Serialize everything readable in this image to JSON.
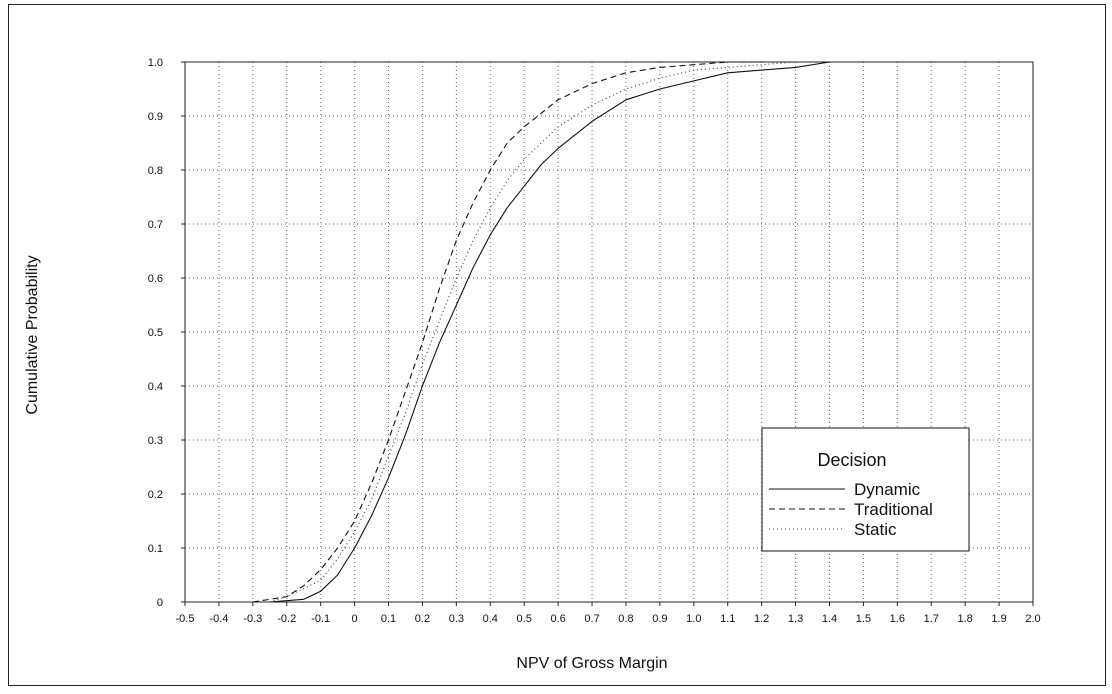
{
  "chart_data": {
    "type": "line",
    "title": "",
    "xlabel": "NPV of Gross Margin",
    "ylabel": "Cumulative Probability",
    "xlim": [
      -0.5,
      2.0
    ],
    "ylim": [
      0,
      1.0
    ],
    "grid": true,
    "legend": {
      "title": "Decision",
      "position": "bottom-right"
    },
    "x_ticks": [
      "-0.5",
      "-0.4",
      "-0.3",
      "-0.2",
      "-0.1",
      "0",
      "0.1",
      "0.2",
      "0.3",
      "0.4",
      "0.5",
      "0.6",
      "0.7",
      "0.8",
      "0.9",
      "1.0",
      "1.1",
      "1.2",
      "1.3",
      "1.4",
      "1.5",
      "1.6",
      "1.7",
      "1.8",
      "1.9",
      "2.0"
    ],
    "y_ticks": [
      "0",
      "0.1",
      "0.2",
      "0.3",
      "0.4",
      "0.5",
      "0.6",
      "0.7",
      "0.8",
      "0.9",
      "1.0"
    ],
    "series": [
      {
        "name": "Dynamic",
        "line_style": "solid",
        "x": [
          -0.25,
          -0.15,
          -0.1,
          -0.05,
          0,
          0.05,
          0.1,
          0.15,
          0.2,
          0.25,
          0.3,
          0.35,
          0.4,
          0.45,
          0.5,
          0.55,
          0.6,
          0.7,
          0.8,
          0.9,
          1.0,
          1.1,
          1.2,
          1.3,
          1.4
        ],
        "y": [
          0,
          0.005,
          0.02,
          0.05,
          0.1,
          0.16,
          0.23,
          0.31,
          0.4,
          0.48,
          0.55,
          0.62,
          0.68,
          0.73,
          0.77,
          0.81,
          0.84,
          0.89,
          0.93,
          0.95,
          0.965,
          0.98,
          0.985,
          0.99,
          1.0
        ]
      },
      {
        "name": "Traditional",
        "line_style": "dashed",
        "x": [
          -0.3,
          -0.2,
          -0.15,
          -0.1,
          -0.05,
          0,
          0.05,
          0.1,
          0.15,
          0.2,
          0.25,
          0.3,
          0.35,
          0.4,
          0.45,
          0.5,
          0.6,
          0.7,
          0.8,
          0.9,
          1.0,
          1.1,
          1.2
        ],
        "y": [
          0,
          0.01,
          0.03,
          0.06,
          0.1,
          0.15,
          0.22,
          0.3,
          0.39,
          0.48,
          0.58,
          0.67,
          0.74,
          0.8,
          0.85,
          0.88,
          0.93,
          0.96,
          0.98,
          0.99,
          0.995,
          1.0,
          1.0
        ]
      },
      {
        "name": "Static",
        "line_style": "dotted",
        "x": [
          -0.25,
          -0.2,
          -0.1,
          -0.05,
          0,
          0.05,
          0.1,
          0.15,
          0.2,
          0.25,
          0.3,
          0.35,
          0.4,
          0.45,
          0.5,
          0.6,
          0.7,
          0.8,
          0.9,
          1.0,
          1.1,
          1.2,
          1.3
        ],
        "y": [
          0,
          0.01,
          0.04,
          0.08,
          0.13,
          0.19,
          0.27,
          0.35,
          0.44,
          0.52,
          0.6,
          0.67,
          0.73,
          0.78,
          0.82,
          0.88,
          0.92,
          0.95,
          0.97,
          0.985,
          0.99,
          0.995,
          1.0
        ]
      }
    ]
  }
}
